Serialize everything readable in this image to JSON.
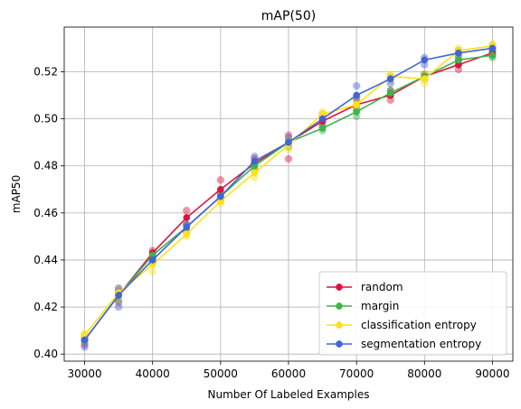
{
  "chart_data": {
    "type": "line",
    "title": "mAP(50)",
    "xlabel": "Number Of Labeled Examples",
    "ylabel": "mAP50",
    "xlim": [
      27000,
      93000
    ],
    "ylim": [
      0.397,
      0.539
    ],
    "xticks": [
      30000,
      40000,
      50000,
      60000,
      70000,
      80000,
      90000
    ],
    "yticks": [
      0.4,
      0.42,
      0.44,
      0.46,
      0.48,
      0.5,
      0.52
    ],
    "grid": true,
    "legend_position": "bottom-right",
    "x": [
      30000,
      35000,
      40000,
      45000,
      50000,
      55000,
      60000,
      65000,
      70000,
      75000,
      80000,
      85000,
      90000
    ],
    "series": [
      {
        "name": "random",
        "color": "#dc143c",
        "values": [
          0.406,
          0.425,
          0.443,
          0.458,
          0.47,
          0.481,
          0.49,
          0.499,
          0.506,
          0.51,
          0.518,
          0.523,
          0.528
        ],
        "scatter": [
          [
            30000,
            0.404
          ],
          [
            30000,
            0.407
          ],
          [
            35000,
            0.422
          ],
          [
            35000,
            0.427
          ],
          [
            40000,
            0.441
          ],
          [
            40000,
            0.444
          ],
          [
            45000,
            0.455
          ],
          [
            45000,
            0.461
          ],
          [
            50000,
            0.467
          ],
          [
            50000,
            0.474
          ],
          [
            55000,
            0.479
          ],
          [
            55000,
            0.483
          ],
          [
            60000,
            0.483
          ],
          [
            60000,
            0.493
          ],
          [
            65000,
            0.497
          ],
          [
            65000,
            0.502
          ],
          [
            70000,
            0.504
          ],
          [
            70000,
            0.508
          ],
          [
            75000,
            0.508
          ],
          [
            75000,
            0.512
          ],
          [
            80000,
            0.517
          ],
          [
            80000,
            0.519
          ],
          [
            85000,
            0.521
          ],
          [
            85000,
            0.525
          ],
          [
            90000,
            0.527
          ],
          [
            90000,
            0.53
          ]
        ]
      },
      {
        "name": "margin",
        "color": "#3cb44b",
        "values": [
          0.406,
          0.425,
          0.442,
          0.454,
          0.467,
          0.48,
          0.49,
          0.496,
          0.503,
          0.511,
          0.518,
          0.525,
          0.527
        ],
        "scatter": [
          [
            30000,
            0.405
          ],
          [
            30000,
            0.408
          ],
          [
            35000,
            0.423
          ],
          [
            35000,
            0.426
          ],
          [
            40000,
            0.439
          ],
          [
            40000,
            0.443
          ],
          [
            45000,
            0.452
          ],
          [
            45000,
            0.455
          ],
          [
            50000,
            0.465
          ],
          [
            50000,
            0.468
          ],
          [
            55000,
            0.478
          ],
          [
            55000,
            0.481
          ],
          [
            60000,
            0.488
          ],
          [
            60000,
            0.491
          ],
          [
            65000,
            0.495
          ],
          [
            65000,
            0.497
          ],
          [
            70000,
            0.501
          ],
          [
            70000,
            0.505
          ],
          [
            75000,
            0.51
          ],
          [
            75000,
            0.512
          ],
          [
            80000,
            0.517
          ],
          [
            80000,
            0.519
          ],
          [
            85000,
            0.523
          ],
          [
            85000,
            0.526
          ],
          [
            90000,
            0.526
          ],
          [
            90000,
            0.528
          ]
        ]
      },
      {
        "name": "classification entropy",
        "color": "#ffe119",
        "values": [
          0.408,
          0.426,
          0.438,
          0.451,
          0.465,
          0.477,
          0.489,
          0.502,
          0.506,
          0.518,
          0.517,
          0.529,
          0.531
        ],
        "scatter": [
          [
            30000,
            0.407
          ],
          [
            30000,
            0.409
          ],
          [
            35000,
            0.425
          ],
          [
            35000,
            0.428
          ],
          [
            40000,
            0.435
          ],
          [
            40000,
            0.44
          ],
          [
            45000,
            0.45
          ],
          [
            45000,
            0.453
          ],
          [
            50000,
            0.464
          ],
          [
            50000,
            0.467
          ],
          [
            55000,
            0.475
          ],
          [
            55000,
            0.479
          ],
          [
            60000,
            0.487
          ],
          [
            60000,
            0.491
          ],
          [
            65000,
            0.5
          ],
          [
            65000,
            0.503
          ],
          [
            70000,
            0.504
          ],
          [
            70000,
            0.508
          ],
          [
            75000,
            0.516
          ],
          [
            75000,
            0.519
          ],
          [
            80000,
            0.515
          ],
          [
            80000,
            0.519
          ],
          [
            85000,
            0.527
          ],
          [
            85000,
            0.53
          ],
          [
            90000,
            0.529
          ],
          [
            90000,
            0.532
          ]
        ]
      },
      {
        "name": "segmentation entropy",
        "color": "#4363d8",
        "values": [
          0.406,
          0.425,
          0.44,
          0.454,
          0.467,
          0.482,
          0.49,
          0.5,
          0.51,
          0.517,
          0.525,
          0.528,
          0.53
        ],
        "scatter": [
          [
            30000,
            0.403
          ],
          [
            30000,
            0.406
          ],
          [
            35000,
            0.42
          ],
          [
            35000,
            0.428
          ],
          [
            40000,
            0.439
          ],
          [
            40000,
            0.441
          ],
          [
            45000,
            0.452
          ],
          [
            45000,
            0.455
          ],
          [
            50000,
            0.466
          ],
          [
            50000,
            0.469
          ],
          [
            55000,
            0.481
          ],
          [
            55000,
            0.484
          ],
          [
            60000,
            0.489
          ],
          [
            60000,
            0.492
          ],
          [
            65000,
            0.499
          ],
          [
            65000,
            0.501
          ],
          [
            70000,
            0.509
          ],
          [
            70000,
            0.514
          ],
          [
            75000,
            0.515
          ],
          [
            75000,
            0.518
          ],
          [
            80000,
            0.523
          ],
          [
            80000,
            0.526
          ],
          [
            85000,
            0.527
          ],
          [
            85000,
            0.529
          ],
          [
            90000,
            0.529
          ],
          [
            90000,
            0.531
          ]
        ]
      }
    ]
  }
}
